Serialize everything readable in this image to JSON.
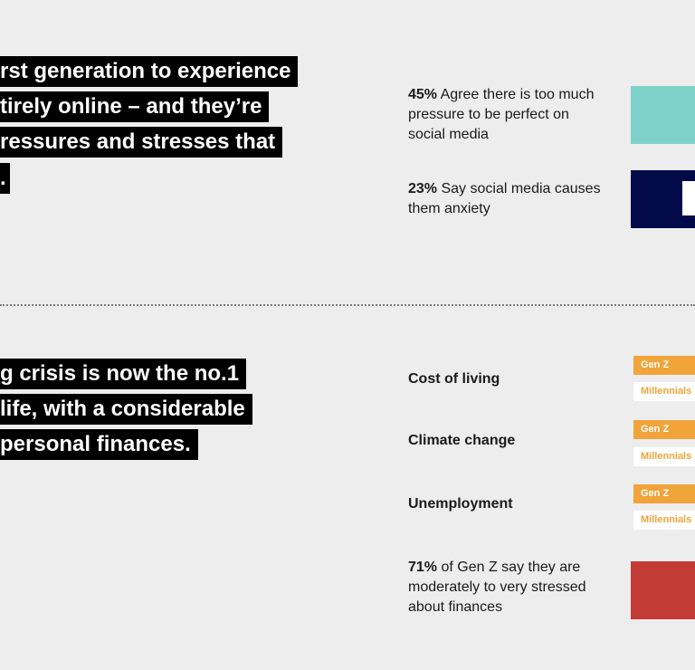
{
  "top_section": {
    "headline_lines": [
      "rst generation to experience",
      "tirely online – and they’re",
      "ressures and stresses that",
      "."
    ],
    "stats": [
      {
        "pct": "45%",
        "text": " Agree there is too much pressure to be perfect on social media",
        "color": "#7dd1c8"
      },
      {
        "pct": "23%",
        "text": " Say social media causes them anxiety",
        "color": "#030a4a"
      }
    ]
  },
  "bottom_section": {
    "headline_lines": [
      "g crisis is now the no.1",
      " life, with a considerable",
      "personal finances."
    ],
    "concerns": [
      {
        "label": "Cost of living",
        "gen_z": "Gen Z",
        "millennials": "Millennials"
      },
      {
        "label": "Climate change",
        "gen_z": "Gen Z",
        "millennials": "Millennials"
      },
      {
        "label": "Unemployment",
        "gen_z": "Gen Z",
        "millennials": "Millennials"
      }
    ],
    "finance_stat": {
      "pct": "71%",
      "text": " of Gen Z say they are moderately to very stressed about finances",
      "color": "#c23b35"
    }
  }
}
